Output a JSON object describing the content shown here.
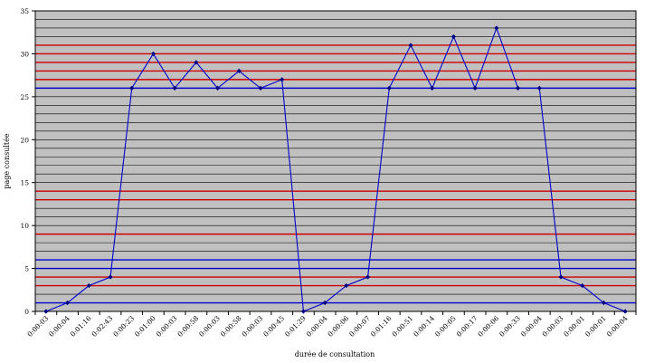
{
  "chart_data": {
    "type": "line",
    "title": "",
    "xlabel": "durée de consultation",
    "ylabel": "page consultée",
    "ylim": [
      0,
      35
    ],
    "yticks": [
      0,
      5,
      10,
      15,
      20,
      25,
      30,
      35
    ],
    "grid": true,
    "legend": "none",
    "categories": [
      "0:00:03",
      "0:00:04",
      "0:01:16",
      "0:02:43",
      "0:00:23",
      "0:01:00",
      "0:00:03",
      "0:00:58",
      "0:00:03",
      "0:00:58",
      "0:00:03",
      "0:00:45",
      "0:01:29",
      "0:00:04",
      "0:00:06",
      "0:00:07",
      "0:01:16",
      "0:00:51",
      "0:00:14",
      "0:00:05",
      "0:00:17",
      "0:00:06",
      "0:00:33",
      "0:00:04",
      "0:00:03",
      "0:00:01",
      "0:00:01",
      "0:00:04"
    ],
    "series": [
      {
        "values": [
          0,
          1,
          3,
          4,
          26,
          30,
          26,
          29,
          26,
          28,
          26,
          27,
          0,
          1,
          3,
          4,
          26,
          31,
          26,
          32,
          26,
          33,
          26,
          26,
          4,
          3,
          1,
          0
        ]
      }
    ],
    "colors": {
      "plot_background": "#c0c0c0",
      "line": "#0000cc",
      "marker": "#000080",
      "gridline_grey": "#000000",
      "gridline_red": "#cc0000",
      "gridline_blue": "#0000cc"
    },
    "red_gridlines": [
      3,
      4,
      9,
      13,
      14,
      27,
      28,
      29,
      30,
      31
    ],
    "blue_gridlines": [
      1,
      5,
      6,
      26
    ]
  }
}
